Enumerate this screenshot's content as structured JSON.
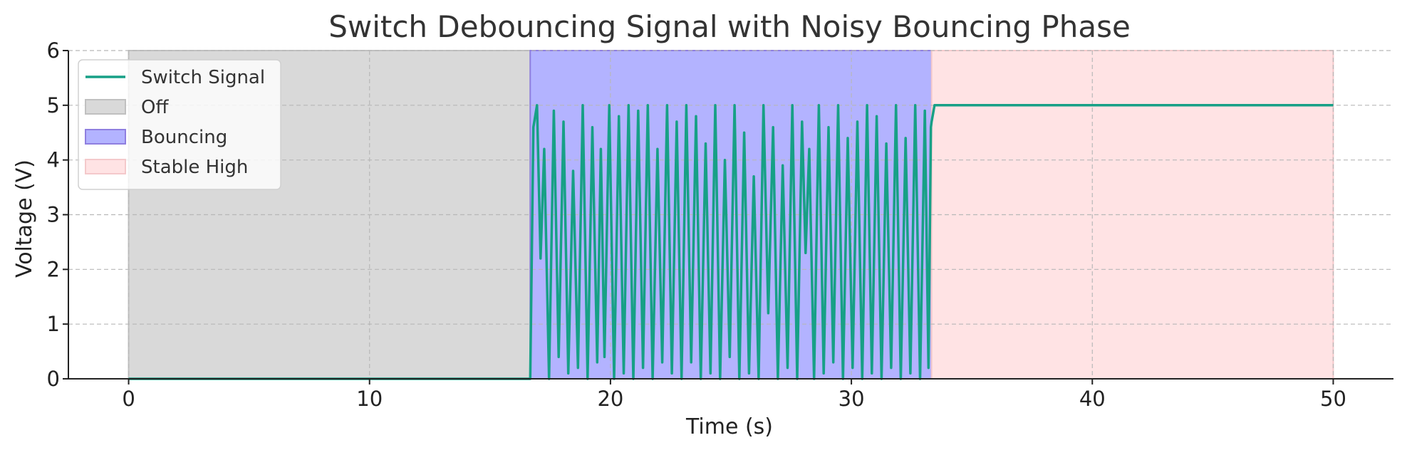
{
  "chart_data": {
    "type": "line",
    "title": "Switch Debouncing Signal with Noisy Bouncing Phase",
    "xlabel": "Time (s)",
    "ylabel": "Voltage (V)",
    "xlim": [
      -2.5,
      52.5
    ],
    "ylim": [
      0,
      6
    ],
    "xticks": [
      0,
      10,
      20,
      30,
      40,
      50
    ],
    "yticks": [
      0,
      1,
      2,
      3,
      4,
      5,
      6
    ],
    "grid": true,
    "legend_position": "upper-left",
    "regions": [
      {
        "name": "Off",
        "x_start": 0,
        "x_end": 16.67,
        "color": "#d9d9d9",
        "edge_color": "#c0c0c0"
      },
      {
        "name": "Bouncing",
        "x_start": 16.67,
        "x_end": 33.33,
        "color": "#b3b3ff",
        "edge_color": "#8f7fe0"
      },
      {
        "name": "Stable High",
        "x_start": 33.33,
        "x_end": 50,
        "color": "#ffe3e4",
        "edge_color": "#f4c9cb"
      }
    ],
    "series": [
      {
        "name": "Switch Signal",
        "color": "#17a086",
        "points": [
          [
            0,
            0
          ],
          [
            16.67,
            0
          ],
          [
            16.8,
            4.6
          ],
          [
            16.95,
            5.0
          ],
          [
            17.1,
            2.2
          ],
          [
            17.25,
            4.2
          ],
          [
            17.45,
            0.0
          ],
          [
            17.65,
            4.9
          ],
          [
            17.85,
            0.4
          ],
          [
            18.05,
            4.7
          ],
          [
            18.25,
            0.1
          ],
          [
            18.45,
            3.8
          ],
          [
            18.65,
            0.2
          ],
          [
            18.85,
            5.0
          ],
          [
            19.05,
            0.0
          ],
          [
            19.25,
            4.6
          ],
          [
            19.45,
            0.3
          ],
          [
            19.6,
            4.2
          ],
          [
            19.75,
            0.4
          ],
          [
            19.95,
            5.0
          ],
          [
            20.15,
            0.0
          ],
          [
            20.35,
            4.8
          ],
          [
            20.55,
            0.1
          ],
          [
            20.75,
            5.0
          ],
          [
            20.95,
            0.0
          ],
          [
            21.15,
            4.9
          ],
          [
            21.35,
            0.2
          ],
          [
            21.55,
            5.0
          ],
          [
            21.75,
            0.0
          ],
          [
            21.95,
            4.2
          ],
          [
            22.15,
            0.3
          ],
          [
            22.35,
            5.0
          ],
          [
            22.55,
            0.1
          ],
          [
            22.75,
            4.7
          ],
          [
            22.95,
            0.0
          ],
          [
            23.15,
            5.0
          ],
          [
            23.35,
            0.3
          ],
          [
            23.55,
            4.8
          ],
          [
            23.75,
            0.0
          ],
          [
            23.95,
            4.3
          ],
          [
            24.15,
            0.1
          ],
          [
            24.35,
            5.0
          ],
          [
            24.55,
            0.0
          ],
          [
            24.75,
            4.0
          ],
          [
            24.95,
            0.4
          ],
          [
            25.15,
            5.0
          ],
          [
            25.35,
            0.0
          ],
          [
            25.55,
            4.5
          ],
          [
            25.75,
            0.1
          ],
          [
            25.95,
            3.7
          ],
          [
            26.15,
            0.0
          ],
          [
            26.35,
            5.0
          ],
          [
            26.55,
            1.2
          ],
          [
            26.75,
            4.6
          ],
          [
            26.95,
            0.0
          ],
          [
            27.15,
            3.9
          ],
          [
            27.35,
            0.2
          ],
          [
            27.55,
            5.0
          ],
          [
            27.75,
            0.0
          ],
          [
            27.95,
            4.7
          ],
          [
            28.1,
            2.3
          ],
          [
            28.25,
            4.2
          ],
          [
            28.45,
            0.0
          ],
          [
            28.65,
            5.0
          ],
          [
            28.85,
            0.1
          ],
          [
            29.05,
            4.6
          ],
          [
            29.25,
            0.3
          ],
          [
            29.45,
            5.0
          ],
          [
            29.65,
            0.0
          ],
          [
            29.85,
            4.4
          ],
          [
            30.05,
            0.2
          ],
          [
            30.25,
            4.7
          ],
          [
            30.45,
            0.0
          ],
          [
            30.65,
            5.0
          ],
          [
            30.85,
            0.1
          ],
          [
            31.05,
            4.8
          ],
          [
            31.25,
            0.0
          ],
          [
            31.45,
            4.3
          ],
          [
            31.65,
            0.2
          ],
          [
            31.85,
            5.0
          ],
          [
            32.05,
            0.0
          ],
          [
            32.25,
            4.4
          ],
          [
            32.45,
            0.1
          ],
          [
            32.65,
            5.0
          ],
          [
            32.85,
            0.0
          ],
          [
            33.05,
            4.9
          ],
          [
            33.2,
            0.2
          ],
          [
            33.3,
            4.6
          ],
          [
            33.33,
            4.7
          ],
          [
            33.45,
            5.0
          ],
          [
            50,
            5.0
          ]
        ]
      }
    ]
  }
}
